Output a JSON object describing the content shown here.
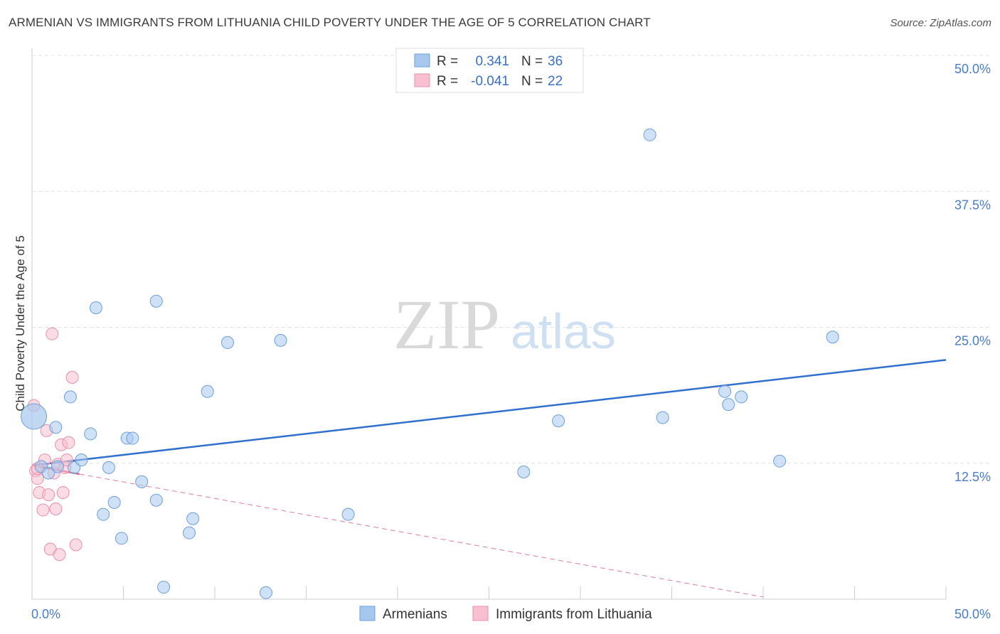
{
  "chart_data": {
    "type": "scatter",
    "title": "ARMENIAN VS IMMIGRANTS FROM LITHUANIA CHILD POVERTY UNDER THE AGE OF 5 CORRELATION CHART",
    "source": "Source: ZipAtlas.com",
    "ylabel": "Child Poverty Under the Age of 5",
    "xlim": [
      0,
      50
    ],
    "ylim": [
      0,
      50
    ],
    "x_tick_labels": [
      "0.0%",
      "50.0%"
    ],
    "y_ticks": [
      12.5,
      25.0,
      37.5,
      50.0
    ],
    "y_tick_labels": [
      "12.5%",
      "25.0%",
      "37.5%",
      "50.0%"
    ],
    "watermark": {
      "zip": "ZIP",
      "atlas": "atlas"
    },
    "legend": {
      "r_label": "R =",
      "n_label": "N =",
      "entries": [
        {
          "r": "0.341",
          "n": "36"
        },
        {
          "r": "-0.041",
          "n": "22"
        }
      ]
    },
    "series": [
      {
        "name": "Armenians",
        "color": "#a7c8ee",
        "stroke": "#6d9fd8",
        "trend_color": "#2f6fcf",
        "trend": [
          [
            0,
            12.3
          ],
          [
            50,
            22.0
          ]
        ],
        "points": [
          [
            0.1,
            16.8
          ],
          [
            0.5,
            12.2
          ],
          [
            0.9,
            11.6
          ],
          [
            1.3,
            15.8
          ],
          [
            1.4,
            12.2
          ],
          [
            2.1,
            18.6
          ],
          [
            2.3,
            12.1
          ],
          [
            2.7,
            12.8
          ],
          [
            3.2,
            15.2
          ],
          [
            3.5,
            26.8
          ],
          [
            3.9,
            7.8
          ],
          [
            4.2,
            12.1
          ],
          [
            4.5,
            8.9
          ],
          [
            4.9,
            5.6
          ],
          [
            5.2,
            14.8
          ],
          [
            5.5,
            14.8
          ],
          [
            6.0,
            10.8
          ],
          [
            6.8,
            27.4
          ],
          [
            6.8,
            9.1
          ],
          [
            7.2,
            1.1
          ],
          [
            8.6,
            6.1
          ],
          [
            8.8,
            7.4
          ],
          [
            9.6,
            19.1
          ],
          [
            10.7,
            23.6
          ],
          [
            12.8,
            0.6
          ],
          [
            13.6,
            23.8
          ],
          [
            17.3,
            7.8
          ],
          [
            26.9,
            11.7
          ],
          [
            28.8,
            16.4
          ],
          [
            33.8,
            42.7
          ],
          [
            34.5,
            16.7
          ],
          [
            37.9,
            19.1
          ],
          [
            38.1,
            17.9
          ],
          [
            38.8,
            18.6
          ],
          [
            40.9,
            12.7
          ],
          [
            43.8,
            24.1
          ]
        ]
      },
      {
        "name": "Immigrants from Lithuania",
        "color": "#f7bfd0",
        "stroke": "#e890ab",
        "trend_color": "#d9607f",
        "trend_solid": [
          [
            0,
            12.3
          ],
          [
            2.6,
            11.5
          ]
        ],
        "trend_dashed": [
          [
            2.6,
            11.5
          ],
          [
            40,
            0.2
          ]
        ],
        "points": [
          [
            0.1,
            17.8
          ],
          [
            0.2,
            11.8
          ],
          [
            0.3,
            11.1
          ],
          [
            0.4,
            9.8
          ],
          [
            0.6,
            8.2
          ],
          [
            0.7,
            12.8
          ],
          [
            0.8,
            15.5
          ],
          [
            0.9,
            9.6
          ],
          [
            1.0,
            4.6
          ],
          [
            1.1,
            24.4
          ],
          [
            1.2,
            11.6
          ],
          [
            1.3,
            8.3
          ],
          [
            1.4,
            12.4
          ],
          [
            1.5,
            4.1
          ],
          [
            1.6,
            14.2
          ],
          [
            1.7,
            9.8
          ],
          [
            1.8,
            12.1
          ],
          [
            1.9,
            12.8
          ],
          [
            2.0,
            14.4
          ],
          [
            2.2,
            20.4
          ],
          [
            2.4,
            5.0
          ],
          [
            0.3,
            12.0
          ]
        ]
      }
    ]
  }
}
